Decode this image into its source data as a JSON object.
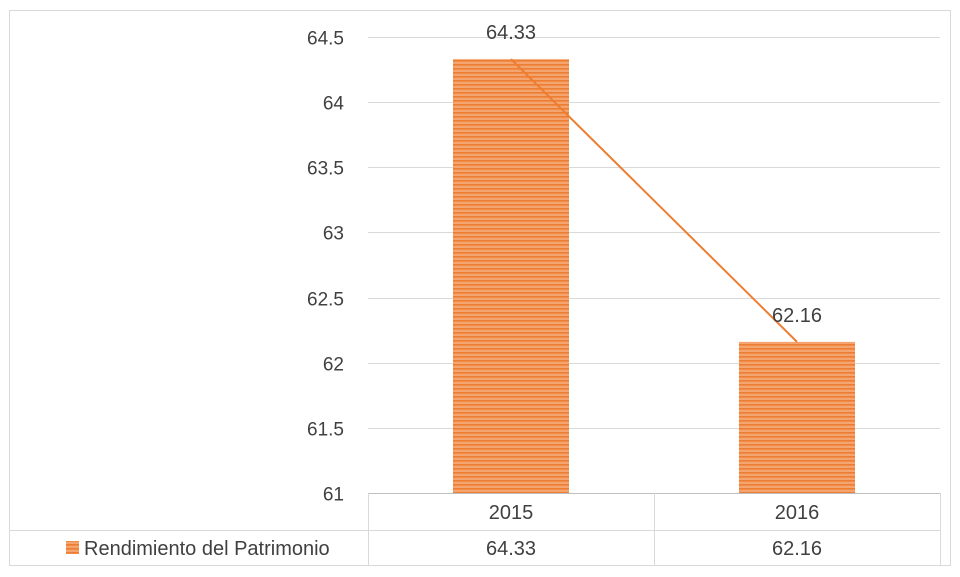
{
  "chart_data": {
    "type": "bar",
    "title": "",
    "xlabel": "",
    "ylabel": "",
    "categories": [
      "2015",
      "2016"
    ],
    "series": [
      {
        "name": "Rendimiento del Patrimonio",
        "values": [
          64.33,
          62.16
        ]
      }
    ],
    "data_labels": [
      "64.33",
      "62.16"
    ],
    "ylim": [
      61,
      64.5
    ],
    "yticks": [
      61,
      61.5,
      62,
      62.5,
      63,
      63.5,
      64,
      64.5
    ],
    "ytick_labels": [
      "61",
      "61.5",
      "62",
      "62.5",
      "63",
      "63.5",
      "64",
      "64.5"
    ],
    "grid": true,
    "legend": "data-table-bottom",
    "has_trend_line": true,
    "colors": {
      "bar": "#F4A46E",
      "bar_stripe": "#ED7D31",
      "trend_line": "#ED7D31",
      "grid": "#D9D9D9",
      "frame": "#D9D9D9",
      "text": "#404040"
    }
  }
}
